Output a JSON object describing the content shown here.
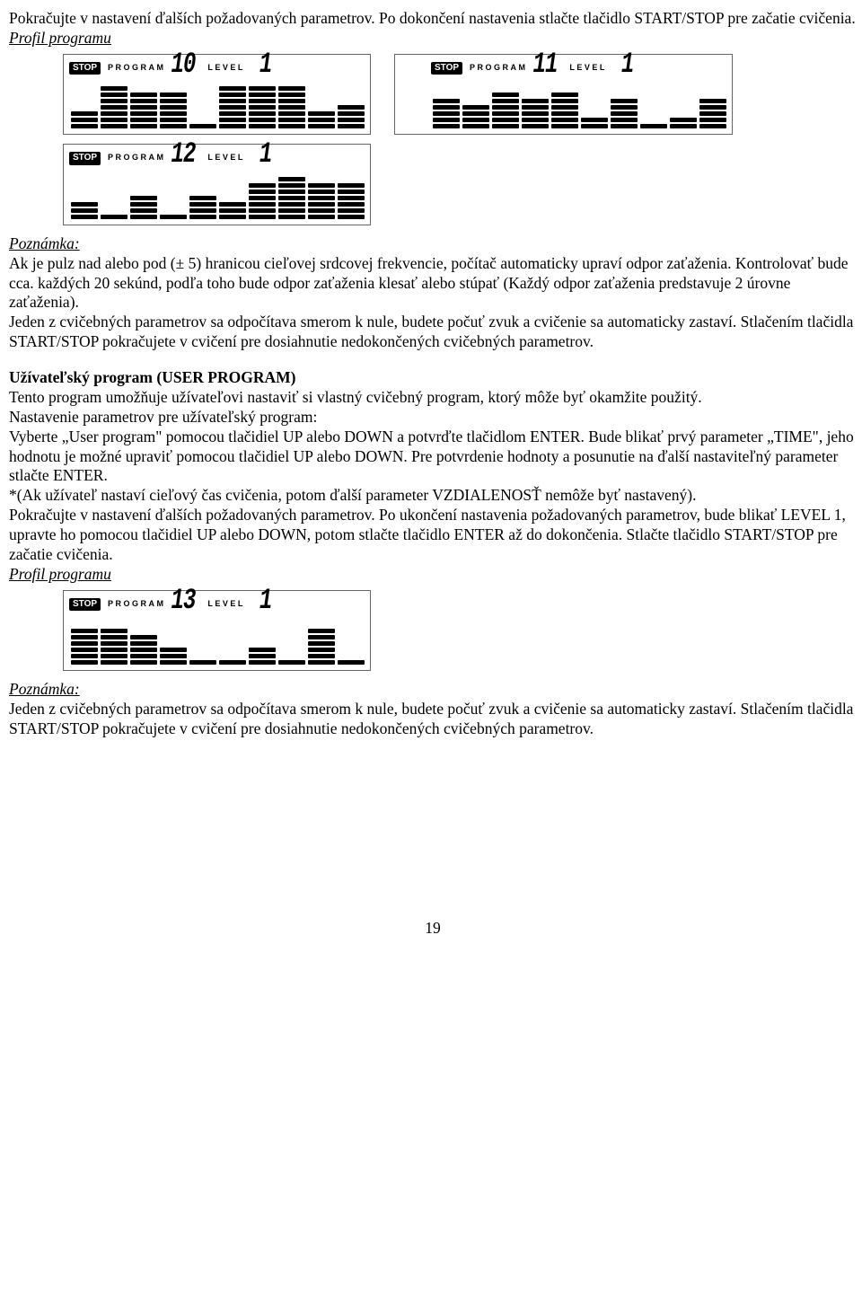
{
  "intro_text": "Pokračujte v nastavení ďalších požadovaných parametrov. Po dokončení nastavenia stlačte tlačidlo START/STOP pre začatie cvičenia.",
  "profile_heading": "Profil programu",
  "lcd": {
    "stop_label": "STOP",
    "program_label": "PROGRAM",
    "level_label": "LEVEL",
    "p10": {
      "program": "10",
      "level": "1",
      "bars": [
        3,
        7,
        6,
        6,
        1,
        7,
        7,
        7,
        3,
        4
      ]
    },
    "p11": {
      "program": "11",
      "level": "1",
      "bars": [
        5,
        4,
        6,
        5,
        6,
        2,
        5,
        1,
        2,
        5
      ]
    },
    "p12": {
      "program": "12",
      "level": "1",
      "bars": [
        3,
        1,
        4,
        1,
        4,
        3,
        6,
        7,
        6,
        6
      ]
    },
    "p13": {
      "program": "13",
      "level": "1",
      "bars": [
        6,
        6,
        5,
        3,
        1,
        1,
        3,
        1,
        6,
        1
      ]
    }
  },
  "note_label": "Poznámka:",
  "note1_p1": "Ak je pulz nad alebo pod (± 5) hranicou cieľovej srdcovej frekvencie, počítač automaticky upraví odpor zaťaženia. Kontrolovať bude cca. každých 20 sekúnd, podľa toho bude odpor zaťaženia klesať alebo stúpať (Každý odpor zaťaženia predstavuje 2 úrovne zaťaženia).",
  "note1_p2": "Jeden z cvičebných parametrov sa odpočítava smerom k nule, budete počuť zvuk a cvičenie sa automaticky zastaví. Stlačením tlačidla START/STOP pokračujete v cvičení pre dosiahnutie nedokončených cvičebných parametrov.",
  "user_prog_heading": "Užívateľský program (USER PROGRAM)",
  "user_p1": "Tento program umožňuje užívateľovi nastaviť si vlastný cvičebný program, ktorý môže byť okamžite použitý.",
  "user_p2": "Nastavenie parametrov pre užívateľský program:",
  "user_p3": "Vyberte „User program\" pomocou tlačidiel UP alebo DOWN a potvrďte tlačidlom ENTER. Bude blikať prvý parameter „TIME\", jeho hodnotu je možné upraviť pomocou tlačidiel UP alebo DOWN. Pre potvrdenie hodnoty a posunutie na ďalší nastaviteľný parameter stlačte ENTER.",
  "user_p4": "*(Ak užívateľ nastaví cieľový čas cvičenia, potom ďalší parameter VZDIALENOSŤ nemôže byť nastavený).",
  "user_p5": "Pokračujte v nastavení ďalších požadovaných parametrov. Po ukončení nastavenia požadovaných parametrov, bude blikať LEVEL 1, upravte ho pomocou tlačidiel UP alebo DOWN, potom stlačte tlačidlo ENTER až do dokončenia. Stlačte tlačidlo START/STOP pre začatie cvičenia.",
  "note2": "Jeden z cvičebných parametrov sa odpočítava smerom k nule, budete počuť zvuk a cvičenie sa automaticky zastaví. Stlačením tlačidla START/STOP pokračujete v cvičení pre dosiahnutie nedokončených cvičebných parametrov.",
  "page_number": "19"
}
